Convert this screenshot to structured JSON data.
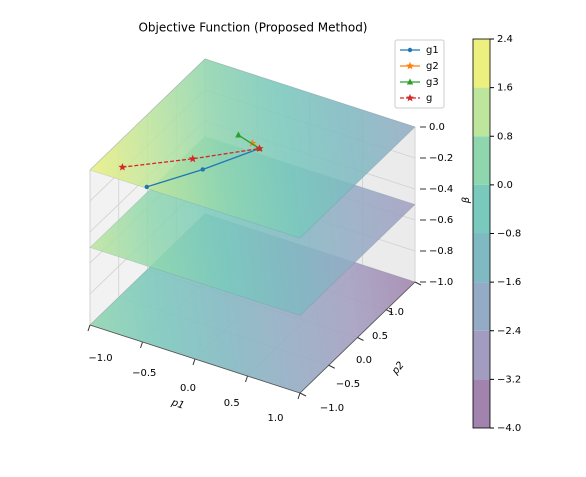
{
  "chart_data": {
    "type": "surface3d",
    "title": "Objective Function (Proposed Method)",
    "xlabel": "p1",
    "ylabel": "p2",
    "zlabel": "β",
    "xlim": [
      -1,
      1
    ],
    "ylim": [
      -1,
      1
    ],
    "zlim": [
      -1,
      0
    ],
    "xticks": [
      {
        "value": -1,
        "label": "−1.0"
      },
      {
        "value": -0.5,
        "label": "−0.5"
      },
      {
        "value": 0,
        "label": "0.0"
      },
      0.5,
      {
        "value": 1,
        "label": "1.0"
      }
    ],
    "yticks": [
      {
        "value": -1,
        "label": "−1.0"
      },
      {
        "value": -0.5,
        "label": "−0.5"
      },
      {
        "value": 0,
        "label": "0.0"
      },
      0.5,
      {
        "value": 1,
        "label": "1.0"
      }
    ],
    "zticks": [
      {
        "value": 0,
        "label": "0.0"
      },
      {
        "value": -0.2,
        "label": "−0.2"
      },
      {
        "value": -0.4,
        "label": "−0.4"
      },
      {
        "value": -0.6,
        "label": "−0.6"
      },
      {
        "value": -0.8,
        "label": "−0.8"
      },
      {
        "value": -1,
        "label": "−1.0"
      }
    ],
    "surface_levels": [
      0,
      -0.5,
      -1
    ],
    "colorbar_lim": [
      -4,
      2.4
    ],
    "colorbar_ticks": [
      {
        "value": -4,
        "label": "−4.0"
      },
      {
        "value": -3.2,
        "label": "−3.2"
      },
      {
        "value": -2.4,
        "label": "−2.4"
      },
      {
        "value": -1.6,
        "label": "−1.6"
      },
      {
        "value": -0.8,
        "label": "−0.8"
      },
      {
        "value": 0,
        "label": "0.0"
      },
      0.8,
      1.6,
      2.4
    ],
    "colorbar_colors": [
      "#a283ad",
      "#a29dc0",
      "#93abc4",
      "#7fb9c2",
      "#79c9bd",
      "#8fd6af",
      "#bde59c",
      "#ecf07f"
    ],
    "legend_position": "upper right",
    "series": [
      {
        "name": "g1",
        "color": "#1f77b4",
        "marker": "o",
        "linestyle": "solid",
        "x": [
          -0.47,
          -0.2,
          0.05
        ],
        "y": [
          -0.98,
          -0.5,
          0.03
        ],
        "z": [
          0,
          0,
          0
        ]
      },
      {
        "name": "g2",
        "color": "#ff7f0e",
        "marker": "*",
        "linestyle": "solid",
        "x": [
          -0.04,
          0.05
        ],
        "y": [
          0.07,
          0.03
        ],
        "z": [
          0,
          0
        ]
      },
      {
        "name": "g3",
        "color": "#2ca02c",
        "marker": "^",
        "linestyle": "solid",
        "x": [
          -0.2,
          0.05
        ],
        "y": [
          0.12,
          0.03
        ],
        "z": [
          0,
          0
        ]
      },
      {
        "name": "g",
        "color": "#d62728",
        "marker": "*",
        "linestyle": "dashed",
        "x": [
          -0.79,
          -0.35,
          0.05
        ],
        "y": [
          -0.82,
          -0.4,
          0.03
        ],
        "z": [
          0,
          0,
          0
        ]
      }
    ]
  }
}
